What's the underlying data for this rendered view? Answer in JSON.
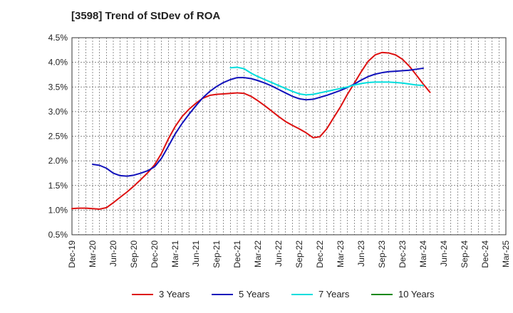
{
  "chart_data": {
    "type": "line",
    "title": "[3598]  Trend of StDev of ROA",
    "ylabel": "",
    "xlabel": "",
    "ylim": [
      0.5,
      4.5
    ],
    "yticks": [
      "4.5%",
      "4.0%",
      "3.5%",
      "3.0%",
      "2.5%",
      "2.0%",
      "1.5%",
      "1.0%",
      "0.5%"
    ],
    "ytick_values": [
      4.5,
      4.0,
      3.5,
      3.0,
      2.5,
      2.0,
      1.5,
      1.0,
      0.5
    ],
    "categories": [
      "Dec-19",
      "Mar-20",
      "Jun-20",
      "Sep-20",
      "Dec-20",
      "Mar-21",
      "Jun-21",
      "Sep-21",
      "Dec-21",
      "Mar-22",
      "Jun-22",
      "Sep-22",
      "Dec-22",
      "Mar-23",
      "Jun-23",
      "Sep-23",
      "Dec-23",
      "Mar-24",
      "Jun-24",
      "Sep-24",
      "Dec-24",
      "Mar-25"
    ],
    "grid": true,
    "legend_position": "bottom",
    "series": [
      {
        "name": "3 Years",
        "color": "#dd1111",
        "points": [
          [
            0,
            1.03
          ],
          [
            0.33,
            1.04
          ],
          [
            0.67,
            1.04
          ],
          [
            1,
            1.03
          ],
          [
            1.33,
            1.02
          ],
          [
            1.67,
            1.05
          ],
          [
            2,
            1.15
          ],
          [
            2.33,
            1.26
          ],
          [
            2.67,
            1.37
          ],
          [
            3,
            1.49
          ],
          [
            3.33,
            1.62
          ],
          [
            3.67,
            1.76
          ],
          [
            4,
            1.92
          ],
          [
            4.33,
            2.15
          ],
          [
            4.67,
            2.45
          ],
          [
            5,
            2.7
          ],
          [
            5.33,
            2.9
          ],
          [
            5.67,
            3.05
          ],
          [
            6,
            3.17
          ],
          [
            6.33,
            3.27
          ],
          [
            6.67,
            3.33
          ],
          [
            7,
            3.35
          ],
          [
            7.33,
            3.36
          ],
          [
            7.67,
            3.37
          ],
          [
            8,
            3.38
          ],
          [
            8.33,
            3.37
          ],
          [
            8.67,
            3.31
          ],
          [
            9,
            3.22
          ],
          [
            9.33,
            3.12
          ],
          [
            9.67,
            3.01
          ],
          [
            10,
            2.9
          ],
          [
            10.33,
            2.8
          ],
          [
            10.67,
            2.72
          ],
          [
            11,
            2.65
          ],
          [
            11.33,
            2.57
          ],
          [
            11.67,
            2.47
          ],
          [
            12,
            2.49
          ],
          [
            12.33,
            2.65
          ],
          [
            12.67,
            2.88
          ],
          [
            13,
            3.1
          ],
          [
            13.33,
            3.35
          ],
          [
            13.67,
            3.58
          ],
          [
            14,
            3.81
          ],
          [
            14.33,
            4.02
          ],
          [
            14.67,
            4.15
          ],
          [
            15,
            4.2
          ],
          [
            15.33,
            4.19
          ],
          [
            15.67,
            4.15
          ],
          [
            16,
            4.06
          ],
          [
            16.33,
            3.92
          ],
          [
            16.67,
            3.74
          ],
          [
            17,
            3.56
          ],
          [
            17.33,
            3.39
          ]
        ]
      },
      {
        "name": "5 Years",
        "color": "#1111bb",
        "points": [
          [
            1,
            1.93
          ],
          [
            1.33,
            1.91
          ],
          [
            1.67,
            1.85
          ],
          [
            2,
            1.75
          ],
          [
            2.33,
            1.7
          ],
          [
            2.67,
            1.69
          ],
          [
            3,
            1.71
          ],
          [
            3.33,
            1.75
          ],
          [
            3.67,
            1.8
          ],
          [
            4,
            1.88
          ],
          [
            4.33,
            2.05
          ],
          [
            4.67,
            2.3
          ],
          [
            5,
            2.55
          ],
          [
            5.33,
            2.76
          ],
          [
            5.67,
            2.95
          ],
          [
            6,
            3.12
          ],
          [
            6.33,
            3.28
          ],
          [
            6.67,
            3.41
          ],
          [
            7,
            3.51
          ],
          [
            7.33,
            3.59
          ],
          [
            7.67,
            3.65
          ],
          [
            8,
            3.69
          ],
          [
            8.33,
            3.69
          ],
          [
            8.67,
            3.67
          ],
          [
            9,
            3.63
          ],
          [
            9.33,
            3.58
          ],
          [
            9.67,
            3.52
          ],
          [
            10,
            3.45
          ],
          [
            10.33,
            3.38
          ],
          [
            10.67,
            3.31
          ],
          [
            11,
            3.26
          ],
          [
            11.33,
            3.24
          ],
          [
            11.67,
            3.25
          ],
          [
            12,
            3.29
          ],
          [
            12.33,
            3.33
          ],
          [
            12.67,
            3.38
          ],
          [
            13,
            3.43
          ],
          [
            13.33,
            3.49
          ],
          [
            13.67,
            3.56
          ],
          [
            14,
            3.64
          ],
          [
            14.33,
            3.71
          ],
          [
            14.67,
            3.76
          ],
          [
            15,
            3.79
          ],
          [
            15.33,
            3.81
          ],
          [
            15.67,
            3.82
          ],
          [
            16,
            3.83
          ],
          [
            16.33,
            3.84
          ],
          [
            16.67,
            3.86
          ],
          [
            17,
            3.88
          ]
        ]
      },
      {
        "name": "7 Years",
        "color": "#00dddd",
        "points": [
          [
            7.67,
            3.89
          ],
          [
            8,
            3.9
          ],
          [
            8.33,
            3.87
          ],
          [
            8.67,
            3.78
          ],
          [
            9,
            3.71
          ],
          [
            9.33,
            3.65
          ],
          [
            9.67,
            3.59
          ],
          [
            10,
            3.53
          ],
          [
            10.33,
            3.47
          ],
          [
            10.67,
            3.41
          ],
          [
            11,
            3.36
          ],
          [
            11.33,
            3.34
          ],
          [
            11.67,
            3.35
          ],
          [
            12,
            3.38
          ],
          [
            12.33,
            3.41
          ],
          [
            12.67,
            3.44
          ],
          [
            13,
            3.47
          ],
          [
            13.33,
            3.5
          ],
          [
            13.67,
            3.54
          ],
          [
            14,
            3.57
          ],
          [
            14.33,
            3.59
          ],
          [
            14.67,
            3.6
          ],
          [
            15,
            3.6
          ],
          [
            15.33,
            3.6
          ],
          [
            15.67,
            3.59
          ],
          [
            16,
            3.58
          ],
          [
            16.33,
            3.56
          ],
          [
            16.67,
            3.54
          ],
          [
            17,
            3.53
          ]
        ]
      },
      {
        "name": "10 Years",
        "color": "#118811",
        "points": []
      }
    ]
  }
}
